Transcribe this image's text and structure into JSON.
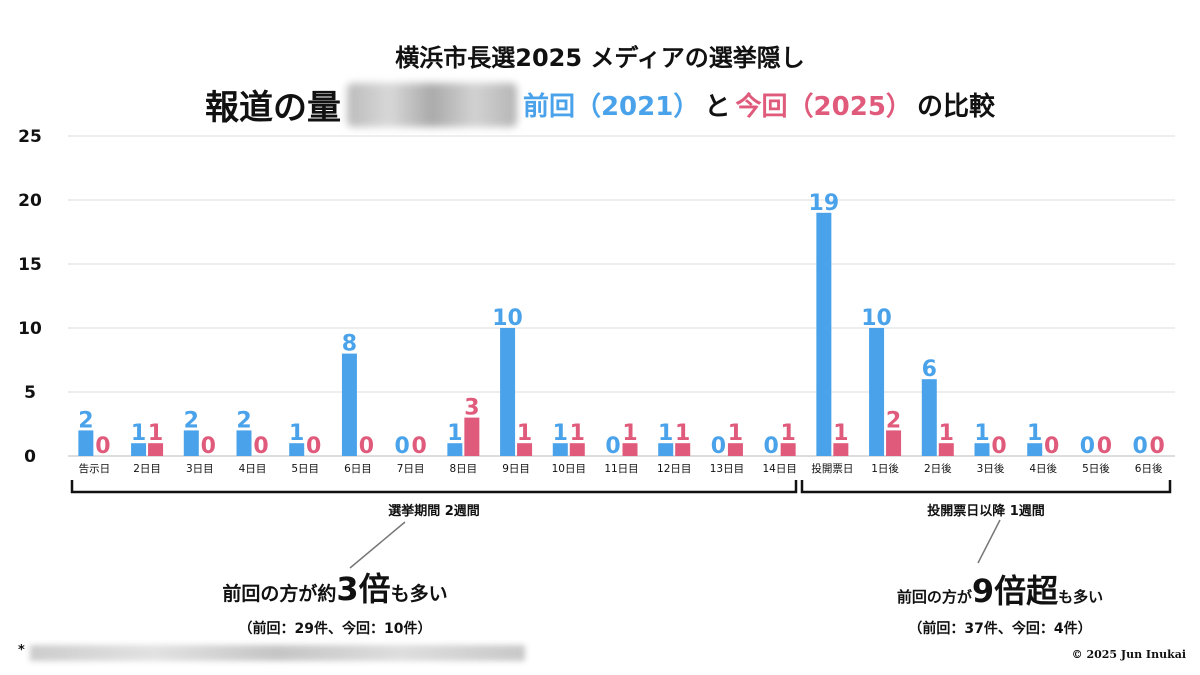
{
  "header": {
    "title_line1": "横浜市長選2025 メディアの選挙隠し",
    "title_main": "報道の量",
    "title_prev": "前回（2021）",
    "title_and": "と",
    "title_curr": "今回（2025）",
    "title_tail": "の比較"
  },
  "chart_data": {
    "type": "bar",
    "categories": [
      "告示日",
      "2日目",
      "3日目",
      "4日目",
      "5日目",
      "6日目",
      "7日目",
      "8日目",
      "9日目",
      "10日目",
      "11日目",
      "12日目",
      "13日目",
      "14日目",
      "投開票日",
      "1日後",
      "2日後",
      "3日後",
      "4日後",
      "5日後",
      "6日後"
    ],
    "series": [
      {
        "values": [
          2,
          1,
          2,
          2,
          1,
          8,
          0,
          1,
          10,
          1,
          0,
          1,
          0,
          0,
          19,
          10,
          6,
          1,
          1,
          0,
          0
        ],
        "color": "#4aa3ea"
      },
      {
        "values": [
          0,
          1,
          0,
          0,
          0,
          0,
          0,
          3,
          1,
          1,
          1,
          1,
          1,
          1,
          1,
          2,
          1,
          0,
          0,
          0,
          0
        ],
        "color": "#e05a7b"
      }
    ],
    "ylim": [
      0,
      25
    ],
    "yticks": [
      0,
      5,
      10,
      15,
      20,
      25
    ],
    "grid": true
  },
  "brackets": {
    "period_label": "選挙期間 2週間",
    "after_label": "投開票日以降 1週間"
  },
  "notes": {
    "left_pre": "前回の方が約",
    "left_big": "3倍",
    "left_post": "も多い",
    "left_sub": "（前回：29件、今回：10件）",
    "right_pre": "前回の方が",
    "right_big": "9倍超",
    "right_post": "も多い",
    "right_sub": "（前回：37件、今回：4件）"
  },
  "footer": {
    "asterisk": "*",
    "copyright": "© 2025 Jun Inukai"
  }
}
